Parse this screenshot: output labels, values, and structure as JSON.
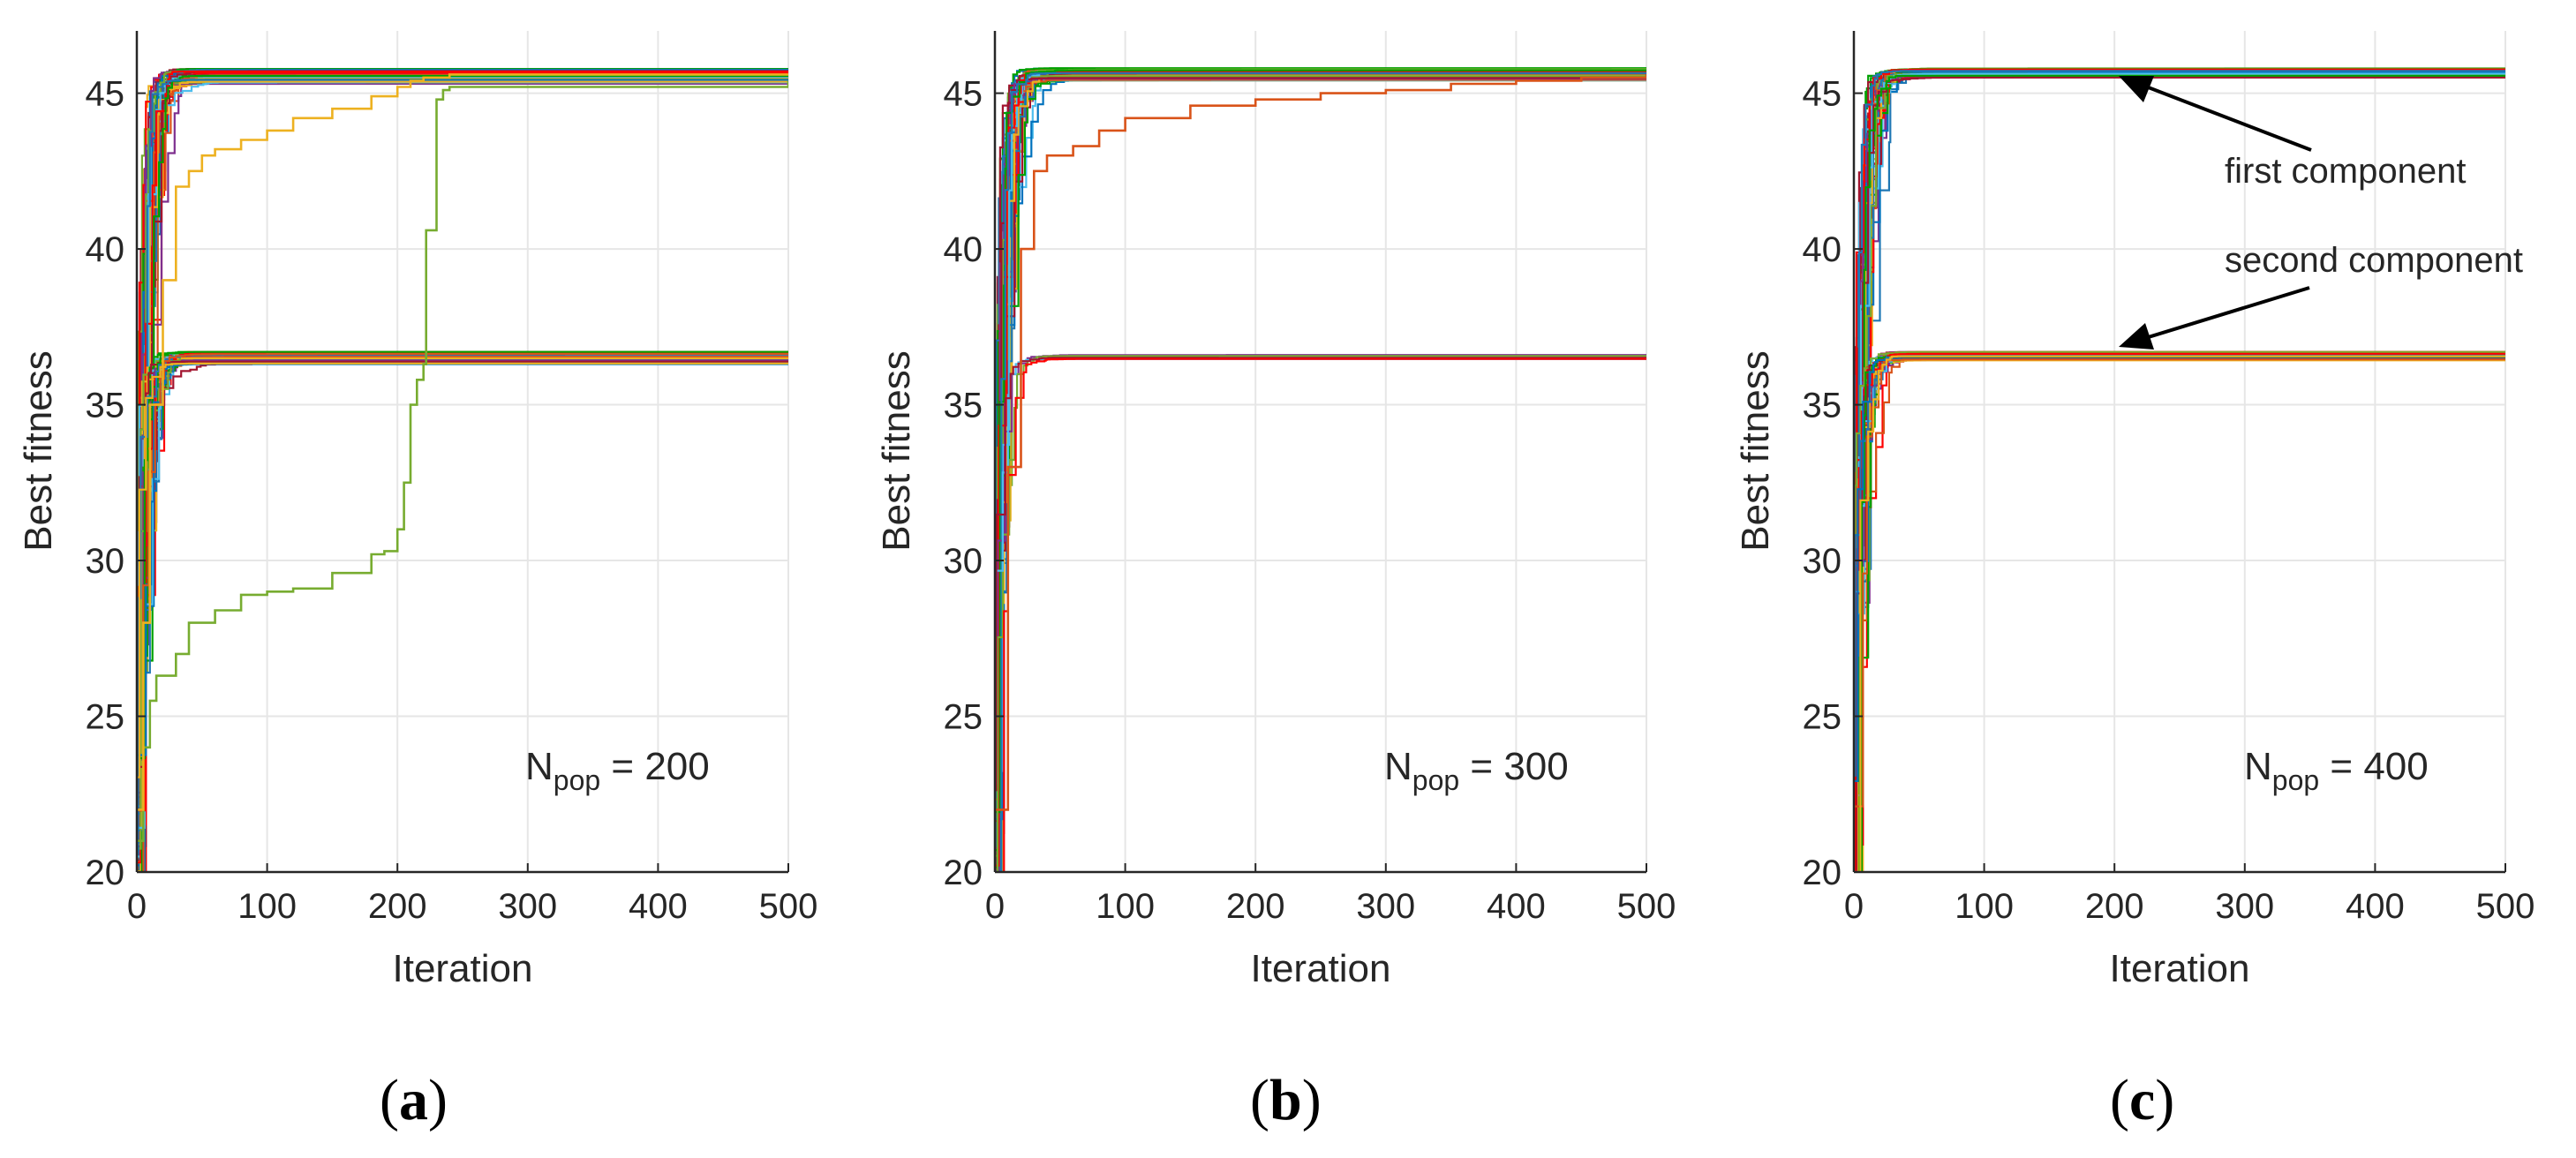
{
  "chart_data": [
    {
      "type": "line",
      "panel": "a",
      "panel_label": "a",
      "xlabel": "Iteration",
      "ylabel": "Best fitness",
      "xlim": [
        0,
        500
      ],
      "ylim": [
        20,
        47
      ],
      "xticks": [
        "0",
        "100",
        "200",
        "300",
        "400",
        "500"
      ],
      "yticks": [
        "20",
        "25",
        "30",
        "35",
        "40",
        "45"
      ],
      "grid": true,
      "npop_label": {
        "base": "N",
        "sub": "pop",
        "rest": " = 200"
      },
      "components": [
        {
          "name": "first component",
          "final_fitness_range": [
            45.3,
            45.8
          ],
          "approx_runs": 50
        },
        {
          "name": "second component",
          "final_fitness_range": [
            36.3,
            36.7
          ],
          "approx_runs": 50
        }
      ],
      "highlighted_runs": [
        {
          "color": "#77ac30",
          "x": [
            0,
            5,
            10,
            15,
            20,
            30,
            40,
            60,
            80,
            100,
            120,
            150,
            180,
            190,
            200,
            205,
            210,
            215,
            220,
            222,
            226,
            230,
            235,
            240,
            500
          ],
          "y": [
            21,
            24,
            25.5,
            26.3,
            26.3,
            27.0,
            28.0,
            28.4,
            28.9,
            29.0,
            29.1,
            29.6,
            30.2,
            30.3,
            31.0,
            32.5,
            35.0,
            35.8,
            36.3,
            40.6,
            40.6,
            44.8,
            45.1,
            45.2,
            45.4
          ]
        },
        {
          "color": "#edb120",
          "x": [
            0,
            5,
            10,
            20,
            30,
            40,
            50,
            60,
            80,
            100,
            120,
            150,
            180,
            200,
            210,
            220,
            230,
            240,
            500
          ],
          "y": [
            22,
            28,
            35,
            39,
            42,
            42.5,
            43,
            43.2,
            43.5,
            43.8,
            44.2,
            44.5,
            44.9,
            45.2,
            45.4,
            45.5,
            45.5,
            45.6,
            45.6
          ]
        }
      ]
    },
    {
      "type": "line",
      "panel": "b",
      "panel_label": "b",
      "xlabel": "Iteration",
      "ylabel": "Best fitness",
      "xlim": [
        0,
        500
      ],
      "ylim": [
        20,
        47
      ],
      "xticks": [
        "0",
        "100",
        "200",
        "300",
        "400",
        "500"
      ],
      "yticks": [
        "20",
        "25",
        "30",
        "35",
        "40",
        "45"
      ],
      "grid": true,
      "npop_label": {
        "base": "N",
        "sub": "pop",
        "rest": " = 300"
      },
      "components": [
        {
          "name": "first component",
          "final_fitness_range": [
            45.4,
            45.8
          ],
          "approx_runs": 80
        },
        {
          "name": "second component",
          "final_fitness_range": [
            36.4,
            36.6
          ],
          "approx_runs": 5
        }
      ],
      "highlighted_runs": [
        {
          "color": "#d95319",
          "x": [
            0,
            10,
            20,
            30,
            40,
            60,
            80,
            100,
            150,
            200,
            250,
            300,
            350,
            400,
            450,
            500
          ],
          "y": [
            22,
            33,
            40,
            42.5,
            43.0,
            43.3,
            43.8,
            44.2,
            44.6,
            44.8,
            45.0,
            45.1,
            45.3,
            45.4,
            45.5,
            45.6
          ]
        }
      ]
    },
    {
      "type": "line",
      "panel": "c",
      "panel_label": "c",
      "xlabel": "Iteration",
      "ylabel": "Best fitness",
      "xlim": [
        0,
        500
      ],
      "ylim": [
        20,
        47
      ],
      "xticks": [
        "0",
        "100",
        "200",
        "300",
        "400",
        "500"
      ],
      "yticks": [
        "20",
        "25",
        "30",
        "35",
        "40",
        "45"
      ],
      "grid": true,
      "npop_label": {
        "base": "N",
        "sub": "pop",
        "rest": " = 400"
      },
      "annotations": [
        {
          "text": "first component",
          "points_to": [
            200,
            45.6
          ]
        },
        {
          "text": "second component",
          "points_to": [
            200,
            36.6
          ]
        }
      ],
      "components": [
        {
          "name": "first component",
          "final_fitness_range": [
            45.5,
            45.8
          ],
          "approx_runs": 60
        },
        {
          "name": "second component",
          "final_fitness_range": [
            36.4,
            36.7
          ],
          "approx_runs": 30
        }
      ]
    }
  ],
  "palette": [
    "#0072bd",
    "#d95319",
    "#edb120",
    "#7e2f8e",
    "#77ac30",
    "#4dbeee",
    "#a2142f",
    "#ff0000",
    "#00a000",
    "#1f77b4"
  ]
}
